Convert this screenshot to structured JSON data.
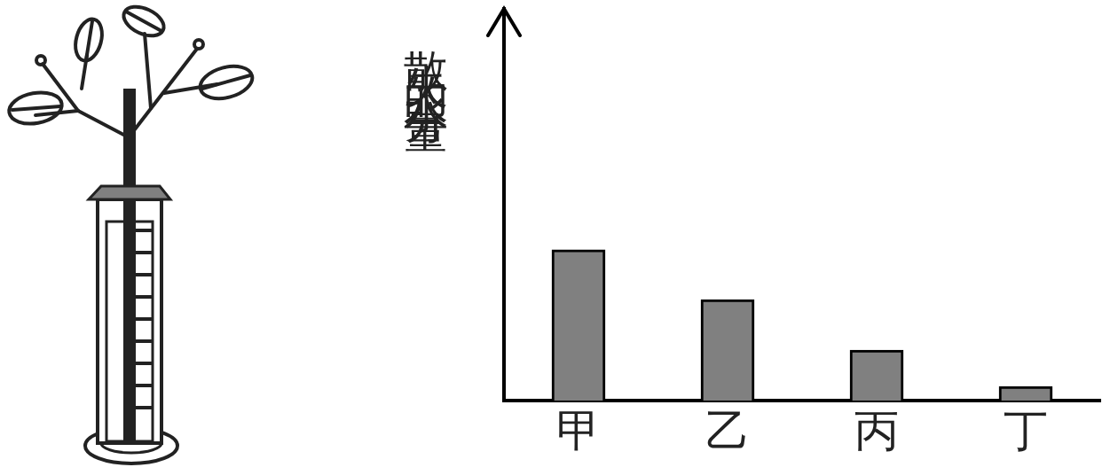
{
  "chart_data": {
    "type": "bar",
    "ylabel": "散失的水分量",
    "categories": [
      "甲",
      "乙",
      "丙",
      "丁"
    ],
    "values": [
      3.85,
      2.58,
      1.29,
      0.36
    ],
    "color": "#808080",
    "ylim": [
      0,
      10
    ],
    "grid": false,
    "tick_labels": "x"
  }
}
